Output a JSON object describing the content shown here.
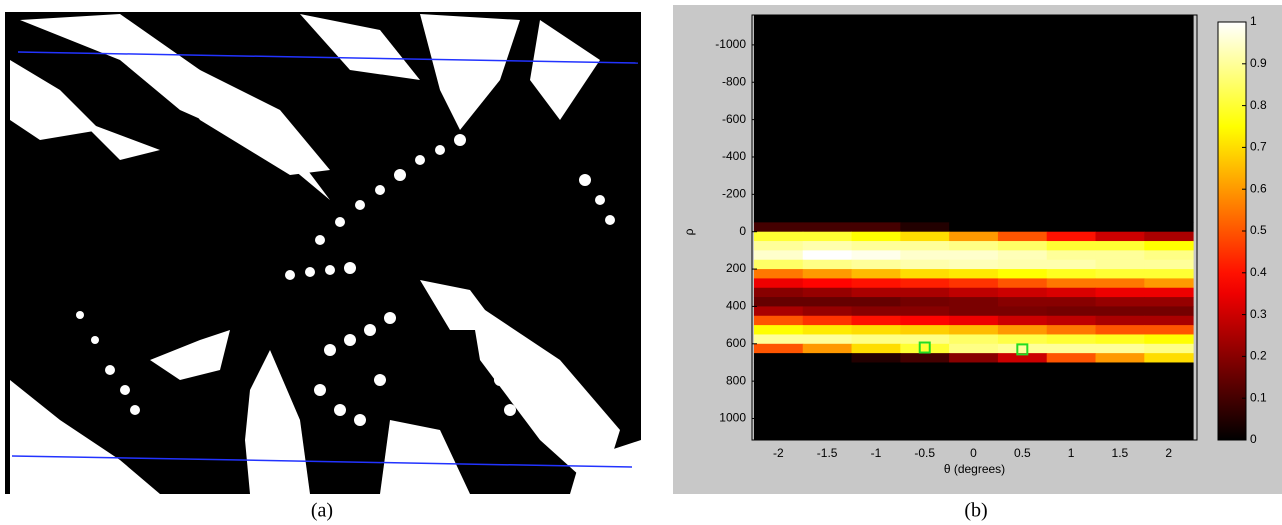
{
  "captions": [
    "(a)",
    "(b)"
  ],
  "chart_data": {
    "type": "heatmap",
    "xlabel": "θ (degrees)",
    "ylabel": "ρ",
    "x": [
      -2,
      -1.5,
      -1,
      -0.5,
      0,
      0.5,
      1,
      1.5,
      2
    ],
    "y_bins": [
      -1160,
      -50,
      0,
      50,
      100,
      150,
      200,
      250,
      300,
      350,
      400,
      450,
      500,
      550,
      600,
      650,
      700,
      1115
    ],
    "z": [
      [
        0,
        0,
        0,
        0,
        0,
        0,
        0,
        0,
        0
      ],
      [
        0.1,
        0.1,
        0.1,
        0.05,
        0,
        0,
        0,
        0,
        0
      ],
      [
        0.8,
        0.8,
        0.75,
        0.7,
        0.6,
        0.5,
        0.4,
        0.3,
        0.25
      ],
      [
        0.9,
        0.92,
        0.9,
        0.9,
        0.88,
        0.85,
        0.8,
        0.8,
        0.75
      ],
      [
        0.95,
        1,
        0.98,
        0.95,
        0.95,
        0.93,
        0.9,
        0.9,
        0.88
      ],
      [
        0.85,
        0.88,
        0.9,
        0.92,
        0.93,
        0.92,
        0.92,
        0.9,
        0.9
      ],
      [
        0.55,
        0.6,
        0.65,
        0.7,
        0.72,
        0.75,
        0.78,
        0.8,
        0.8
      ],
      [
        0.35,
        0.38,
        0.4,
        0.42,
        0.45,
        0.5,
        0.55,
        0.55,
        0.6
      ],
      [
        0.2,
        0.22,
        0.25,
        0.25,
        0.28,
        0.3,
        0.32,
        0.35,
        0.35
      ],
      [
        0.15,
        0.15,
        0.15,
        0.17,
        0.18,
        0.2,
        0.2,
        0.22,
        0.22
      ],
      [
        0.25,
        0.22,
        0.2,
        0.2,
        0.18,
        0.18,
        0.17,
        0.17,
        0.17
      ],
      [
        0.5,
        0.45,
        0.4,
        0.38,
        0.35,
        0.3,
        0.28,
        0.25,
        0.25
      ],
      [
        0.75,
        0.72,
        0.7,
        0.68,
        0.65,
        0.6,
        0.55,
        0.5,
        0.5
      ],
      [
        0.9,
        0.9,
        0.88,
        0.88,
        0.85,
        0.82,
        0.8,
        0.78,
        0.75
      ],
      [
        0.5,
        0.6,
        0.7,
        0.8,
        0.88,
        0.9,
        0.9,
        0.9,
        0.88
      ],
      [
        0,
        0,
        0.05,
        0.1,
        0.2,
        0.3,
        0.5,
        0.6,
        0.7
      ],
      [
        0,
        0,
        0,
        0,
        0,
        0,
        0,
        0,
        0
      ]
    ],
    "colormap": "hot",
    "xlim": [
      -2.27,
      2.29
    ],
    "xticks": [
      -2,
      -1.5,
      -1,
      -0.5,
      0,
      0.5,
      1,
      1.5,
      2
    ],
    "ylim": [
      -1160,
      1115
    ],
    "y_reversed": true,
    "yticks": [
      -1000,
      -800,
      -600,
      -400,
      -200,
      0,
      200,
      400,
      600,
      800,
      1000
    ],
    "clim": [
      0,
      1
    ],
    "cticks": [
      0,
      0.1,
      0.2,
      0.3,
      0.4,
      0.5,
      0.6,
      0.7,
      0.8,
      0.9,
      1
    ],
    "peaks": {
      "color": "#22dd22",
      "x": [
        -0.5,
        0.5
      ],
      "y": [
        620,
        630
      ]
    }
  }
}
